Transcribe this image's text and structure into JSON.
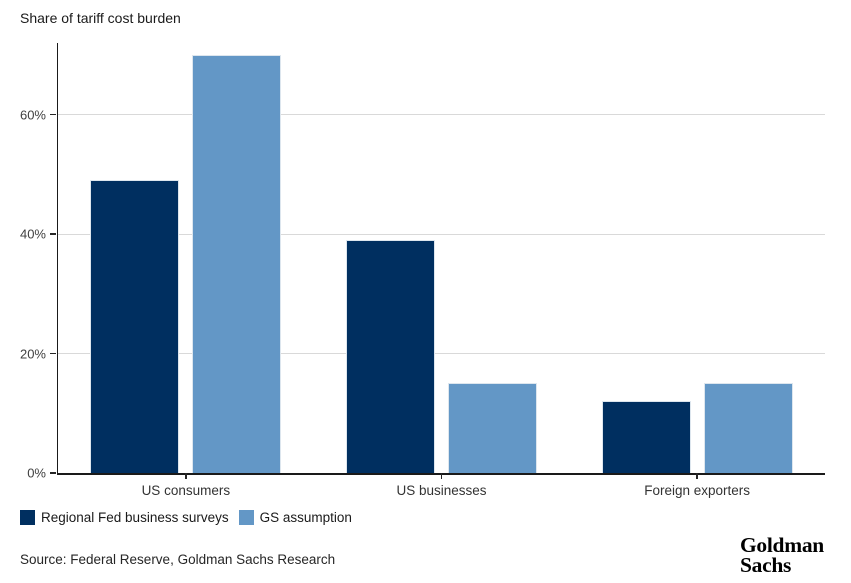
{
  "source": "Source: Federal Reserve, Goldman Sachs Research",
  "logo": {
    "line1": "Goldman",
    "line2": "Sachs"
  },
  "colors": {
    "series_dark": "#002f60",
    "series_light": "#6397c6",
    "gridline": "#d9d9d9",
    "axis": "#1a1a1a",
    "background": "#ffffff"
  },
  "chart_data": {
    "type": "bar",
    "title": "Share of tariff cost burden",
    "categories": [
      "US consumers",
      "US businesses",
      "Foreign exporters"
    ],
    "series": [
      {
        "name": "Regional Fed business surveys",
        "color": "#002f60",
        "values": [
          49,
          39,
          12
        ]
      },
      {
        "name": "GS assumption",
        "color": "#6397c6",
        "values": [
          70,
          15,
          15
        ]
      }
    ],
    "xlabel": "",
    "ylabel": "",
    "yticks": [
      0,
      20,
      40,
      60
    ],
    "ytick_labels": [
      "0%",
      "20%",
      "40%",
      "60%"
    ],
    "ylim": [
      0,
      72
    ],
    "grid": true,
    "legend_position": "bottom-left"
  }
}
